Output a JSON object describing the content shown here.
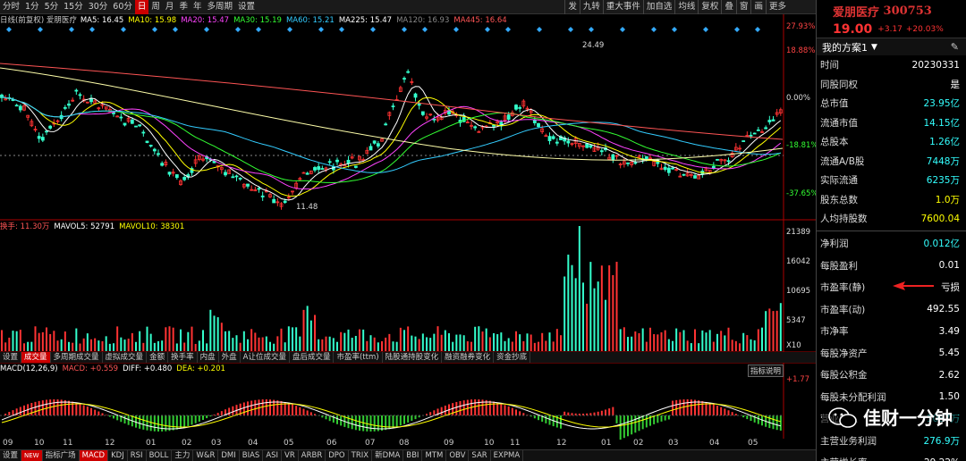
{
  "topbar": {
    "periods": [
      "分时",
      "1分",
      "5分",
      "15分",
      "30分",
      "60分",
      "日",
      "周",
      "月",
      "季",
      "年",
      "多周期",
      "设置"
    ],
    "active_period": "日",
    "right_tools": [
      "发",
      "九转",
      "重大事件",
      "加自选",
      "均线",
      "复权",
      "叠",
      "窗",
      "画",
      "更多"
    ]
  },
  "ma_legend": {
    "prefix": "日线(前复权) 爱朋医疗",
    "items": [
      {
        "label": "MA5: 16.45",
        "color": "#ffffff"
      },
      {
        "label": "MA10: 15.98",
        "color": "#ffff00"
      },
      {
        "label": "MA20: 15.47",
        "color": "#ff44ff"
      },
      {
        "label": "MA30: 15.19",
        "color": "#33ff33"
      },
      {
        "label": "MA60: 15.21",
        "color": "#33ccff"
      },
      {
        "label": "MA225: 15.47",
        "color": "#ffffff"
      },
      {
        "label": "MA120: 16.93",
        "color": "#888888"
      },
      {
        "label": "MA445: 16.64",
        "color": "#ff5555"
      }
    ]
  },
  "price_axis": [
    "27.93%",
    "18.88%",
    "0.00%",
    "-18.81%",
    "-37.65%"
  ],
  "price_annotations": {
    "high": "24.49",
    "low": "11.48"
  },
  "vol_legend": {
    "items": [
      {
        "label": "换手: 11.30万",
        "color": "#ff5555"
      },
      {
        "label": "MAVOL5: 52791",
        "color": "#ffffff"
      },
      {
        "label": "MAVOL10: 38301",
        "color": "#ffff00"
      }
    ]
  },
  "vol_axis": [
    "21389",
    "16042",
    "10695",
    "5347",
    "X10"
  ],
  "indicator_tabs": [
    "设置",
    "成交量",
    "多周期成交量",
    "虚拟成交量",
    "金额",
    "换手率",
    "内盘",
    "外盘",
    "A让位成交量",
    "盘后成交量",
    "市盈率(ttm)",
    "陆股通持股变化",
    "融资融券变化",
    "资金抄底"
  ],
  "active_indicator_tab": "成交量",
  "macd_legend": {
    "items": [
      {
        "label": "MACD(12,26,9)",
        "color": "#ffffff"
      },
      {
        "label": "MACD: +0.559",
        "color": "#ff5555"
      },
      {
        "label": "DIFF: +0.480",
        "color": "#ffffff"
      },
      {
        "label": "DEA: +0.201",
        "color": "#ffff00"
      }
    ]
  },
  "macd_axis": [
    "+1.77"
  ],
  "help_button": "指标说明",
  "x_labels": [
    "09",
    "10",
    "11",
    "12",
    "01",
    "02",
    "03",
    "04",
    "05",
    "06",
    "07",
    "08",
    "09",
    "10",
    "11",
    "12",
    "01",
    "02",
    "03",
    "04",
    "05"
  ],
  "bottom_tabs": [
    "设置",
    "NEW",
    "指标广场",
    "MACD",
    "KDJ",
    "RSI",
    "BOLL",
    "主力",
    "W&R",
    "DMI",
    "BIAS",
    "ASI",
    "VR",
    "ARBR",
    "DPO",
    "TRIX",
    "新DMA",
    "BBI",
    "MTM",
    "OBV",
    "SAR",
    "EXPMA"
  ],
  "active_bottom_tab": "MACD",
  "stock": {
    "name": "爱朋医疗",
    "code": "300753",
    "price": "19.00",
    "change": "+3.17",
    "change_pct": "+20.03%",
    "scheme": "我的方案1"
  },
  "fundamentals_1": [
    {
      "label": "时间",
      "value": "20230331"
    },
    {
      "label": "同股同权",
      "value": "是"
    },
    {
      "label": "总市值",
      "value": "23.95亿"
    },
    {
      "label": "流通市值",
      "value": "14.15亿"
    },
    {
      "label": "总股本",
      "value": "1.26亿"
    },
    {
      "label": "流通A/B股",
      "value": "7448万"
    },
    {
      "label": "实际流通",
      "value": "6235万"
    },
    {
      "label": "股东总数",
      "value": "1.0万"
    },
    {
      "label": "人均持股数",
      "value": "7600.04"
    }
  ],
  "fundamentals_2": [
    {
      "label": "净利润",
      "value": "0.012亿"
    },
    {
      "label": "每股盈利",
      "value": "0.01"
    },
    {
      "label": "市盈率(静)",
      "value": "亏损"
    },
    {
      "label": "市盈率(动)",
      "value": "492.55"
    },
    {
      "label": "市净率",
      "value": "3.49"
    },
    {
      "label": "每股净资产",
      "value": "5.45"
    },
    {
      "label": "每股公积金",
      "value": "2.62"
    },
    {
      "label": "每股未分配利润",
      "value": "1.50"
    },
    {
      "label": "营业收入",
      "value": "1087万"
    },
    {
      "label": "主营业务利润",
      "value": "276.9万"
    },
    {
      "label": "主营增长率",
      "value": "29.22%"
    }
  ],
  "watermark": "佳财一分钟"
}
